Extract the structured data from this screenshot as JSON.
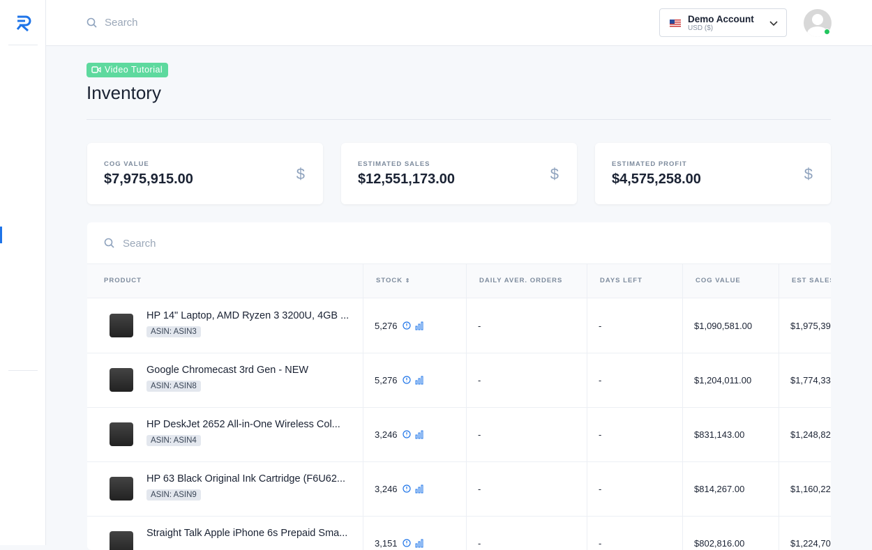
{
  "header": {
    "search_placeholder": "Search",
    "account_name": "Demo Account",
    "account_currency": "USD ($)"
  },
  "page": {
    "badge": "Video Tutorial",
    "title": "Inventory"
  },
  "cards": [
    {
      "label": "COG VALUE",
      "value": "$7,975,915.00",
      "icon": "$"
    },
    {
      "label": "ESTIMATED SALES",
      "value": "$12,551,173.00",
      "icon": "$"
    },
    {
      "label": "ESTIMATED PROFIT",
      "value": "$4,575,258.00",
      "icon": "$"
    }
  ],
  "table": {
    "search_placeholder": "Search",
    "columns": [
      "PRODUCT",
      "STOCK",
      "DAILY AVER. ORDERS",
      "DAYS LEFT",
      "COG VALUE",
      "EST SALES"
    ],
    "rows": [
      {
        "name": "HP 14\" Laptop, AMD Ryzen 3 3200U, 4GB ...",
        "asin": "ASIN: ASIN3",
        "stock": "5,276",
        "daily": "-",
        "days_left": "-",
        "cog": "$1,090,581.00",
        "est_sales": "$1,975,39"
      },
      {
        "name": "Google Chromecast 3rd Gen - NEW",
        "asin": "ASIN: ASIN8",
        "stock": "5,276",
        "daily": "-",
        "days_left": "-",
        "cog": "$1,204,011.00",
        "est_sales": "$1,774,33"
      },
      {
        "name": "HP DeskJet 2652 All-in-One Wireless Col...",
        "asin": "ASIN: ASIN4",
        "stock": "3,246",
        "daily": "-",
        "days_left": "-",
        "cog": "$831,143.00",
        "est_sales": "$1,248,82"
      },
      {
        "name": "HP 63 Black Original Ink Cartridge (F6U62...",
        "asin": "ASIN: ASIN9",
        "stock": "3,246",
        "daily": "-",
        "days_left": "-",
        "cog": "$814,267.00",
        "est_sales": "$1,160,22"
      },
      {
        "name": "Straight Talk Apple iPhone 6s Prepaid Sma...",
        "stock": "3,151",
        "daily": "-",
        "days_left": "-",
        "cog": "$802,816.00",
        "est_sales": "$1,224,70"
      }
    ]
  }
}
